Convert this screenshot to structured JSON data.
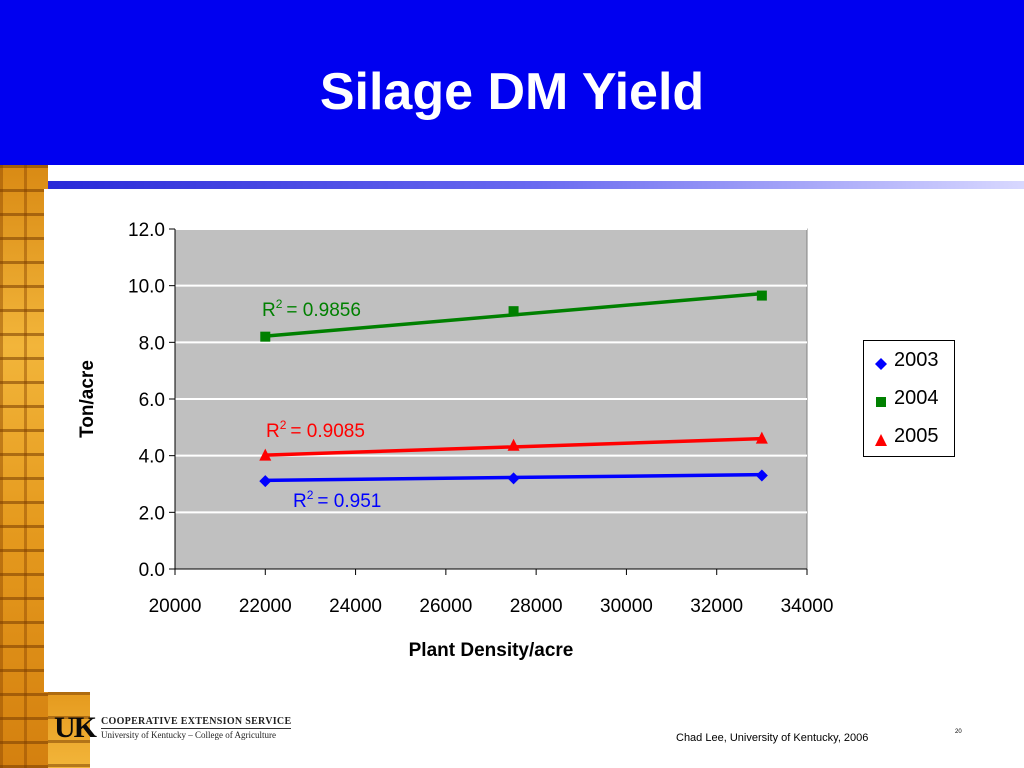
{
  "slide": {
    "title": "Silage DM Yield",
    "credit": "Chad Lee, University of Kentucky, 2006",
    "page_number": "20",
    "logo": {
      "letters": "UK",
      "line1": "COOPERATIVE EXTENSION SERVICE",
      "line2": "University of Kentucky – College of Agriculture"
    },
    "colors": {
      "title_bar": "#0000f0",
      "title_text": "#ffffff"
    }
  },
  "chart_data": {
    "type": "scatter",
    "xlabel": "Plant Density/acre",
    "ylabel": "Ton/acre",
    "xlim": [
      20000,
      34000
    ],
    "ylim": [
      0,
      12
    ],
    "x_ticks": [
      "20000",
      "22000",
      "24000",
      "26000",
      "28000",
      "30000",
      "32000",
      "34000"
    ],
    "y_ticks": [
      "0.0",
      "2.0",
      "4.0",
      "6.0",
      "8.0",
      "10.0",
      "12.0"
    ],
    "grid": "horizontal",
    "plot_background": "#c0c0c0",
    "legend_position": "right",
    "series": [
      {
        "name": "2003",
        "marker": "diamond",
        "color": "#0000ff",
        "x": [
          22000,
          27500,
          33000
        ],
        "y": [
          3.1,
          3.2,
          3.3
        ],
        "trend": [
          3.13,
          3.33
        ],
        "r2_label": "R",
        "r2_value": "= 0.951"
      },
      {
        "name": "2004",
        "marker": "square",
        "color": "#008000",
        "x": [
          22000,
          27500,
          33000
        ],
        "y": [
          8.2,
          9.1,
          9.65
        ],
        "trend": [
          8.22,
          9.72
        ],
        "r2_label": "R",
        "r2_value": "= 0.9856"
      },
      {
        "name": "2005",
        "marker": "triangle",
        "color": "#ff0000",
        "x": [
          22000,
          27500,
          33000
        ],
        "y": [
          4.0,
          4.35,
          4.6
        ],
        "trend": [
          4.02,
          4.6
        ],
        "r2_label": "R",
        "r2_value": "= 0.9085"
      }
    ]
  }
}
